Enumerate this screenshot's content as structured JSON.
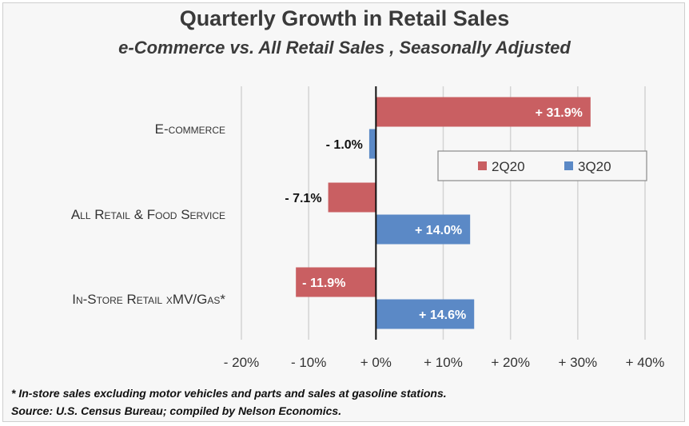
{
  "title": "Quarterly Growth in Retail Sales",
  "subtitle": "e-Commerce vs. All Retail Sales , Seasonally Adjusted",
  "footnotes": [
    "* In-store sales excluding motor vehicles and parts and sales at gasoline stations.",
    "Source: U.S. Census Bureau; compiled by Nelson Economics."
  ],
  "chart_data": {
    "type": "bar",
    "orientation": "horizontal",
    "categories": [
      "E-commerce",
      "All Retail & Food Service",
      "In-Store Retail xMV/Gas*"
    ],
    "series": [
      {
        "name": "2Q20",
        "color": "#c95f62",
        "values": [
          31.9,
          -7.1,
          -11.9
        ],
        "labels": [
          "+ 31.9%",
          "- 7.1%",
          "- 11.9%"
        ]
      },
      {
        "name": "3Q20",
        "color": "#5b89c6",
        "values": [
          -1.0,
          14.0,
          14.6
        ],
        "labels": [
          "- 1.0%",
          "+ 14.0%",
          "+ 14.6%"
        ]
      }
    ],
    "xlim": [
      -20,
      40
    ],
    "xticks": [
      -20,
      -10,
      0,
      10,
      20,
      30,
      40
    ],
    "xtick_labels": [
      "- 20%",
      "- 10%",
      "+ 0%",
      "+ 10%",
      "+ 20%",
      "+ 30%",
      "+ 40%"
    ],
    "grid": "vertical",
    "legend": "right"
  }
}
